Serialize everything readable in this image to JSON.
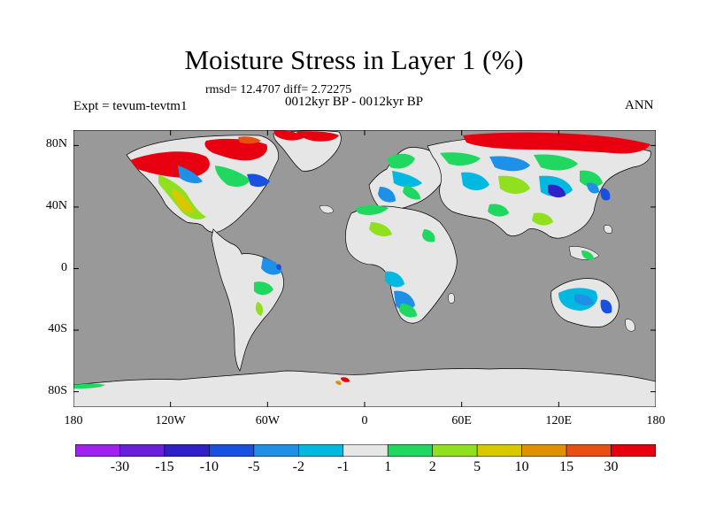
{
  "title": "Moisture Stress in Layer 1 (%)",
  "stats_line": "rmsd= 12.4707 diff= 2.72275",
  "period_line": "0012kyr BP - 0012kyr BP",
  "left_label": "Expt = tevum-tevtm1",
  "right_label": "ANN",
  "colors": {
    "ocean": "#999999",
    "land_neutral": "#e6e6e6",
    "coast": "#000000"
  },
  "y_axis": {
    "range": [
      -90,
      90
    ],
    "ticks": [
      {
        "value": 80,
        "label": "80N"
      },
      {
        "value": 40,
        "label": "40N"
      },
      {
        "value": 0,
        "label": "0"
      },
      {
        "value": -40,
        "label": "40S"
      },
      {
        "value": -80,
        "label": "80S"
      }
    ]
  },
  "x_axis": {
    "range": [
      -180,
      180
    ],
    "ticks": [
      {
        "value": -180,
        "label": "180"
      },
      {
        "value": -120,
        "label": "120W"
      },
      {
        "value": -60,
        "label": "60W"
      },
      {
        "value": 0,
        "label": "0"
      },
      {
        "value": 60,
        "label": "60E"
      },
      {
        "value": 120,
        "label": "120E"
      },
      {
        "value": 180,
        "label": "180"
      }
    ]
  },
  "colorbar": {
    "colors": [
      "#a020f0",
      "#6a20d8",
      "#3020c8",
      "#1a50e0",
      "#1e90e8",
      "#00b8e0",
      "#e6e6e6",
      "#20d860",
      "#90e020",
      "#d8c800",
      "#e09000",
      "#e85010",
      "#e80010"
    ],
    "labels": [
      "-30",
      "-15",
      "-10",
      "-5",
      "-2",
      "-1",
      "1",
      "2",
      "5",
      "10",
      "15",
      "30"
    ]
  }
}
